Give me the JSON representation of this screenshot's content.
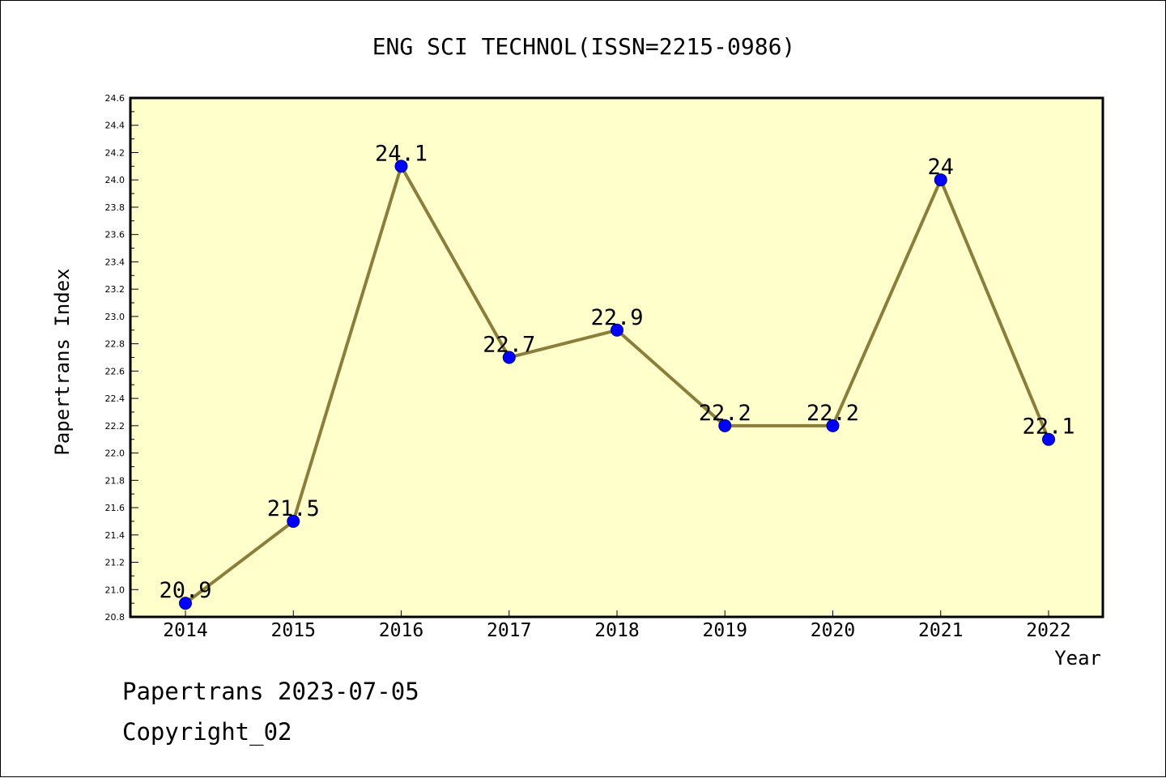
{
  "chart_data": {
    "type": "line",
    "title": "ENG SCI TECHNOL(ISSN=2215-0986)",
    "xlabel": "Year",
    "ylabel": "Papertrans Index",
    "categories": [
      "2014",
      "2015",
      "2016",
      "2017",
      "2018",
      "2019",
      "2020",
      "2021",
      "2022"
    ],
    "series": [
      {
        "values": [
          20.9,
          21.5,
          24.1,
          22.7,
          22.9,
          22.2,
          22.2,
          24,
          22.1
        ],
        "labels": [
          "20.9",
          "21.5",
          "24.1",
          "22.7",
          "22.9",
          "22.2",
          "22.2",
          "24",
          "22.1"
        ]
      }
    ],
    "ylim": [
      20.8,
      24.6
    ],
    "yticks": [
      "20.8",
      "21.0",
      "21.2",
      "21.4",
      "21.6",
      "21.8",
      "22.0",
      "22.2",
      "22.4",
      "22.6",
      "22.8",
      "23.0",
      "23.2",
      "23.4",
      "23.6",
      "23.8",
      "24.0",
      "24.2",
      "24.4",
      "24.6"
    ],
    "grid": false,
    "colors": {
      "plot_background": "#FFFFCC",
      "line": "#8B7D3A",
      "marker": "#0000FF",
      "marker_edge": "#000080"
    }
  },
  "footer": {
    "line1": "Papertrans 2023-07-05",
    "line2": "Copyright_02"
  }
}
